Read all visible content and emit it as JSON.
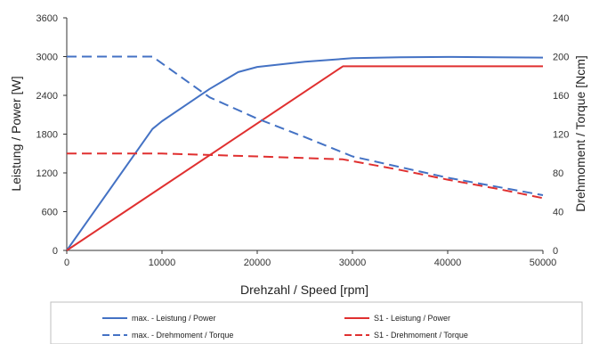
{
  "chart_data": {
    "type": "line",
    "xlabel": "Drehzahl / Speed [rpm]",
    "ylabel_left": "Leistung / Power [W]",
    "ylabel_right": "Drehmoment / Torque [Ncm]",
    "xlim": [
      0,
      50000
    ],
    "ylim_left": [
      0,
      3600
    ],
    "ylim_right": [
      0,
      240
    ],
    "x_ticks": [
      0,
      10000,
      20000,
      30000,
      40000,
      50000
    ],
    "y_ticks_left": [
      0,
      600,
      1200,
      1800,
      2400,
      3000,
      3600
    ],
    "y_ticks_right": [
      0,
      40,
      80,
      120,
      160,
      200,
      240
    ],
    "grid": false,
    "legend_position": "bottom",
    "series": [
      {
        "name": "max. - Leistung / Power",
        "axis": "left",
        "color": "#4472C4",
        "dash": "solid",
        "points": [
          [
            0,
            0
          ],
          [
            9000,
            1880
          ],
          [
            10000,
            2000
          ],
          [
            15000,
            2500
          ],
          [
            18000,
            2760
          ],
          [
            20000,
            2840
          ],
          [
            25000,
            2920
          ],
          [
            30000,
            2975
          ],
          [
            35000,
            2990
          ],
          [
            40000,
            2995
          ],
          [
            45000,
            2990
          ],
          [
            50000,
            2985
          ]
        ]
      },
      {
        "name": "S1 - Leistung / Power",
        "axis": "left",
        "color": "#E03030",
        "dash": "solid",
        "points": [
          [
            0,
            0
          ],
          [
            29000,
            2850
          ],
          [
            50000,
            2850
          ]
        ]
      },
      {
        "name": "max. - Drehmoment / Torque",
        "axis": "right",
        "color": "#4472C4",
        "dash": "dashed",
        "points": [
          [
            0,
            200
          ],
          [
            9000,
            200
          ],
          [
            15000,
            158
          ],
          [
            20000,
            136
          ],
          [
            25000,
            117
          ],
          [
            30000,
            97
          ],
          [
            35000,
            86
          ],
          [
            40000,
            75
          ],
          [
            45000,
            66
          ],
          [
            50000,
            57
          ]
        ]
      },
      {
        "name": "S1 - Drehmoment / Torque",
        "axis": "right",
        "color": "#E03030",
        "dash": "dashed",
        "points": [
          [
            0,
            100
          ],
          [
            10000,
            100
          ],
          [
            20000,
            97
          ],
          [
            29000,
            94
          ],
          [
            35000,
            83
          ],
          [
            40000,
            73
          ],
          [
            45000,
            64
          ],
          [
            50000,
            54
          ]
        ]
      }
    ]
  }
}
